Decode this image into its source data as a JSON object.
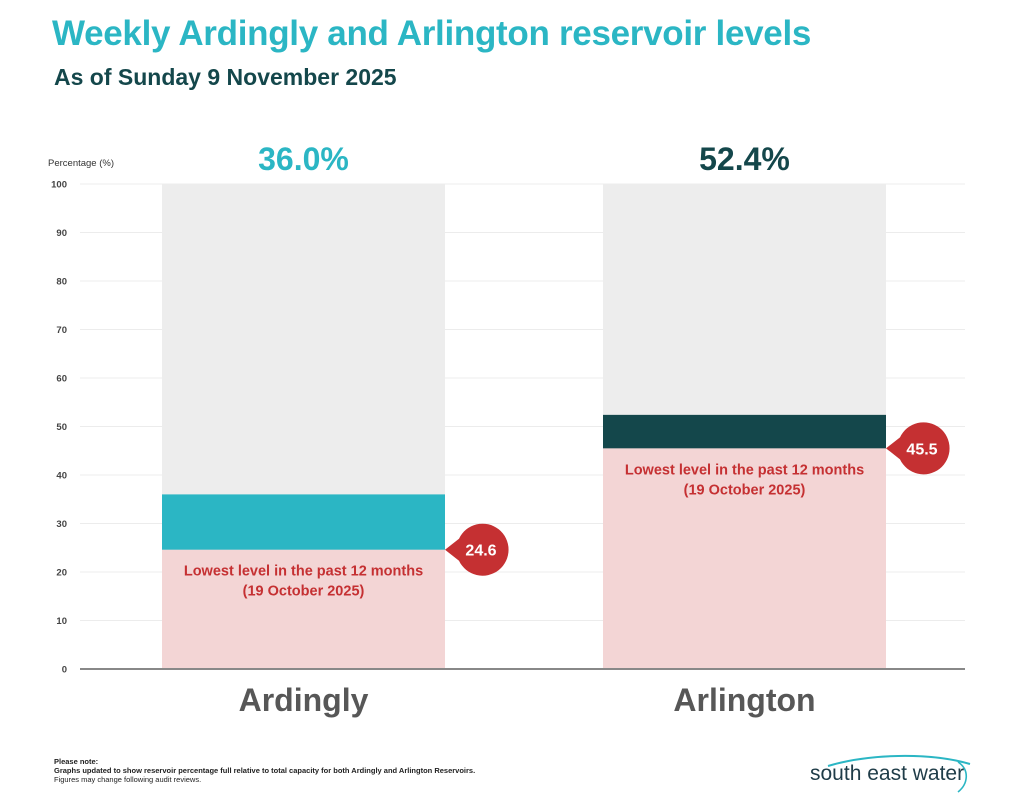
{
  "header": {
    "title": "Weekly Ardingly and Arlington reservoir levels",
    "subtitle": "As of Sunday 9 November 2025"
  },
  "chart_data": {
    "type": "bar",
    "ylabel": "Percentage (%)",
    "ylim": [
      0,
      100
    ],
    "yticks": [
      0,
      10,
      20,
      30,
      40,
      50,
      60,
      70,
      80,
      90,
      100
    ],
    "grid": true,
    "categories": [
      "Ardingly",
      "Arlington"
    ],
    "series": [
      {
        "values": [
          36.0,
          52.4
        ],
        "value_labels": [
          "36.0%",
          "52.4%"
        ],
        "colors": [
          "#2bb6c4",
          "#14474b"
        ]
      }
    ],
    "lowest_level": {
      "values": [
        24.6,
        45.5
      ],
      "labels": [
        "24.6",
        "45.5"
      ],
      "annotation": "Lowest level in the past 12 months",
      "date": "(19 October 2025)",
      "fill_color": "#f3d5d5",
      "marker_color": "#c53032"
    },
    "capacity_color": "#ededed"
  },
  "footnote": {
    "heading": "Please note:",
    "line1": "Graphs updated to show reservoir percentage full relative to total capacity for both Ardingly and Arlington Reservoirs.",
    "line2": "Figures may change following audit reviews."
  },
  "logo": {
    "text": "south east water",
    "icon": "water-wave-icon"
  }
}
